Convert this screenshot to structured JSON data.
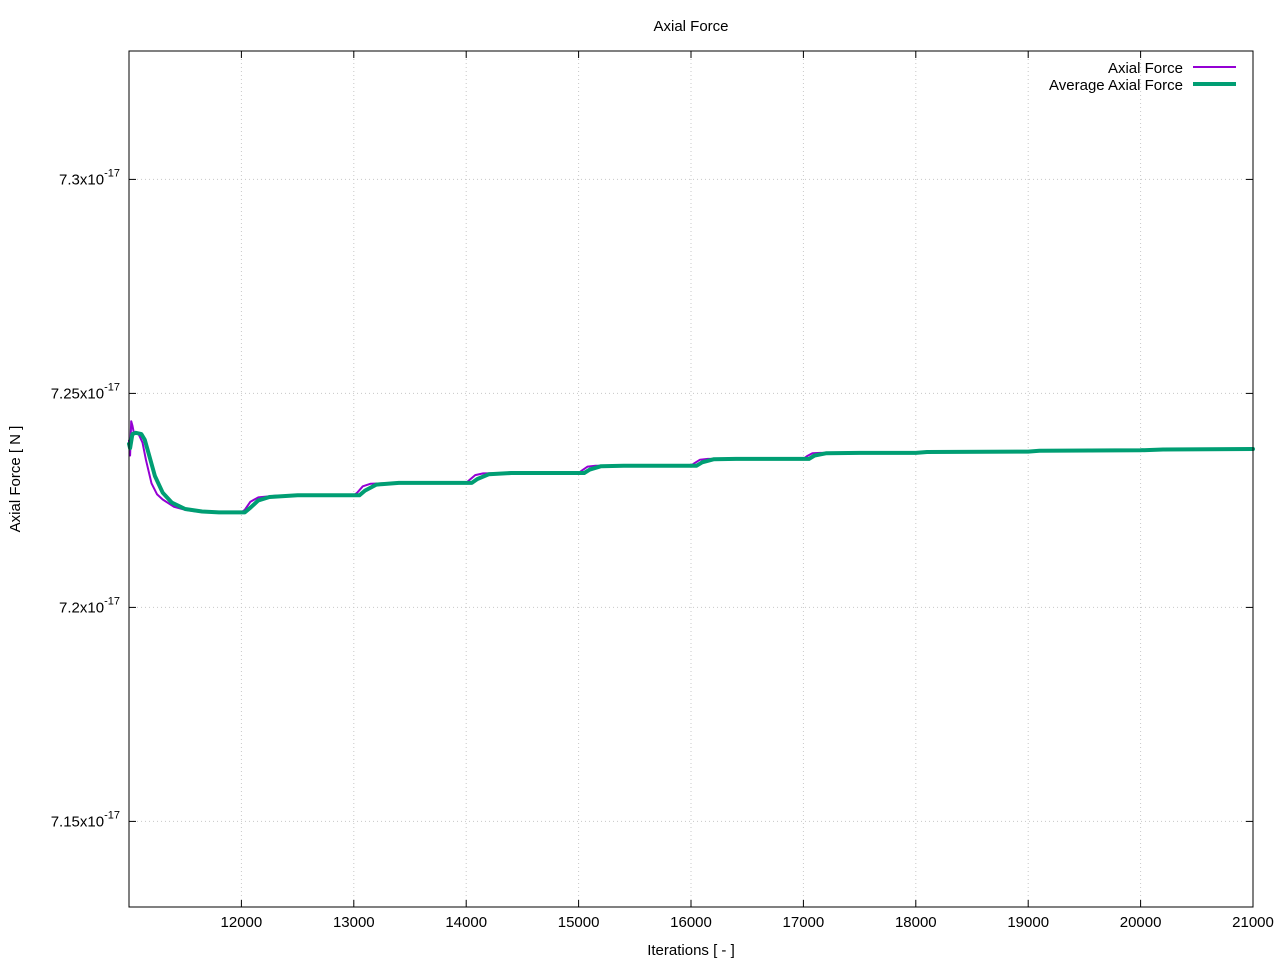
{
  "chart_data": {
    "type": "line",
    "title": "Axial Force",
    "xlabel": "Iterations [ - ]",
    "ylabel": "Axial Force [ N ]",
    "xlim": [
      11000,
      21000
    ],
    "ylim": [
      7.13e-17,
      7.33e-17
    ],
    "x_ticks": [
      12000,
      13000,
      14000,
      15000,
      16000,
      17000,
      18000,
      19000,
      20000,
      21000
    ],
    "x_tick_labels": [
      "12000",
      "13000",
      "14000",
      "15000",
      "16000",
      "17000",
      "18000",
      "19000",
      "20000",
      "21000"
    ],
    "y_ticks": [
      {
        "value": 7.15e-17,
        "mantissa": "7.15x10",
        "exponent": "-17"
      },
      {
        "value": 7.2e-17,
        "mantissa": "7.2x10",
        "exponent": "-17"
      },
      {
        "value": 7.25e-17,
        "mantissa": "7.25x10",
        "exponent": "-17"
      },
      {
        "value": 7.3e-17,
        "mantissa": "7.3x10",
        "exponent": "-17"
      }
    ],
    "grid": true,
    "legend_position": "top-right",
    "series": [
      {
        "name": "Axial Force",
        "color": "#9400d3",
        "points": [
          [
            11000,
            7.239e-17
          ],
          [
            11010,
            7.2355e-17
          ],
          [
            11020,
            7.2435e-17
          ],
          [
            11030,
            7.2425e-17
          ],
          [
            11045,
            7.2405e-17
          ],
          [
            11080,
            7.2408e-17
          ],
          [
            11120,
            7.2385e-17
          ],
          [
            11150,
            7.2345e-17
          ],
          [
            11200,
            7.229e-17
          ],
          [
            11250,
            7.2264e-17
          ],
          [
            11300,
            7.2252e-17
          ],
          [
            11400,
            7.2235e-17
          ],
          [
            11500,
            7.2228e-17
          ],
          [
            11600,
            7.2224e-17
          ],
          [
            11800,
            7.2222e-17
          ],
          [
            12000,
            7.2222e-17
          ],
          [
            12030,
            7.2228e-17
          ],
          [
            12080,
            7.2247e-17
          ],
          [
            12150,
            7.2257e-17
          ],
          [
            12300,
            7.2261e-17
          ],
          [
            12600,
            7.2262e-17
          ],
          [
            13000,
            7.2262e-17
          ],
          [
            13030,
            7.2268e-17
          ],
          [
            13080,
            7.2283e-17
          ],
          [
            13150,
            7.2289e-17
          ],
          [
            13400,
            7.2291e-17
          ],
          [
            14000,
            7.2291e-17
          ],
          [
            14030,
            7.2298e-17
          ],
          [
            14080,
            7.2309e-17
          ],
          [
            14150,
            7.2313e-17
          ],
          [
            14500,
            7.2314e-17
          ],
          [
            15000,
            7.2314e-17
          ],
          [
            15030,
            7.232e-17
          ],
          [
            15080,
            7.2329e-17
          ],
          [
            15150,
            7.2331e-17
          ],
          [
            16000,
            7.2331e-17
          ],
          [
            16030,
            7.2337e-17
          ],
          [
            16080,
            7.2345e-17
          ],
          [
            16150,
            7.2347e-17
          ],
          [
            17000,
            7.2347e-17
          ],
          [
            17030,
            7.2353e-17
          ],
          [
            17080,
            7.236e-17
          ],
          [
            17150,
            7.2361e-17
          ],
          [
            18000,
            7.2361e-17
          ],
          [
            18100,
            7.2363e-17
          ],
          [
            19000,
            7.2364e-17
          ],
          [
            19100,
            7.2366e-17
          ],
          [
            20000,
            7.2367e-17
          ],
          [
            20100,
            7.2369e-17
          ],
          [
            20500,
            7.237e-17
          ],
          [
            21000,
            7.237e-17
          ]
        ]
      },
      {
        "name": "Average Axial Force",
        "color": "#009e73",
        "points": [
          [
            11000,
            7.2382e-17
          ],
          [
            11010,
            7.2372e-17
          ],
          [
            11030,
            7.2405e-17
          ],
          [
            11060,
            7.2408e-17
          ],
          [
            11110,
            7.2405e-17
          ],
          [
            11140,
            7.2392e-17
          ],
          [
            11180,
            7.2355e-17
          ],
          [
            11230,
            7.2307e-17
          ],
          [
            11300,
            7.2268e-17
          ],
          [
            11380,
            7.2245e-17
          ],
          [
            11500,
            7.223e-17
          ],
          [
            11650,
            7.2224e-17
          ],
          [
            11800,
            7.2222e-17
          ],
          [
            12030,
            7.2222e-17
          ],
          [
            12080,
            7.2233e-17
          ],
          [
            12150,
            7.225e-17
          ],
          [
            12250,
            7.2258e-17
          ],
          [
            12500,
            7.2262e-17
          ],
          [
            13050,
            7.2262e-17
          ],
          [
            13100,
            7.2273e-17
          ],
          [
            13200,
            7.2287e-17
          ],
          [
            13400,
            7.2291e-17
          ],
          [
            14050,
            7.2291e-17
          ],
          [
            14100,
            7.23e-17
          ],
          [
            14200,
            7.2311e-17
          ],
          [
            14400,
            7.2314e-17
          ],
          [
            15050,
            7.2314e-17
          ],
          [
            15100,
            7.2322e-17
          ],
          [
            15200,
            7.233e-17
          ],
          [
            15400,
            7.2331e-17
          ],
          [
            16050,
            7.2331e-17
          ],
          [
            16100,
            7.2339e-17
          ],
          [
            16200,
            7.2346e-17
          ],
          [
            16400,
            7.2347e-17
          ],
          [
            17050,
            7.2347e-17
          ],
          [
            17100,
            7.2355e-17
          ],
          [
            17200,
            7.236e-17
          ],
          [
            17500,
            7.2361e-17
          ],
          [
            18000,
            7.2361e-17
          ],
          [
            18100,
            7.2363e-17
          ],
          [
            19000,
            7.2364e-17
          ],
          [
            19100,
            7.2366e-17
          ],
          [
            20000,
            7.2367e-17
          ],
          [
            20200,
            7.2369e-17
          ],
          [
            21000,
            7.237e-17
          ]
        ]
      }
    ]
  }
}
